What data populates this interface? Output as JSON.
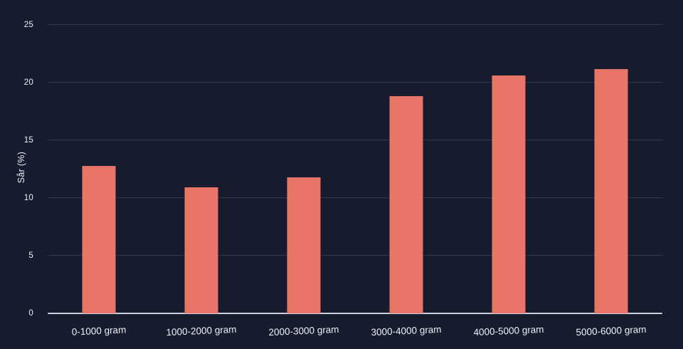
{
  "chart_data": {
    "type": "bar",
    "categories": [
      "0-1000 gram",
      "1000-2000 gram",
      "2000-3000 gram",
      "3000-4000 gram",
      "4000-5000 gram",
      "5000-6000 gram"
    ],
    "values": [
      12.8,
      10.9,
      11.8,
      18.8,
      20.6,
      21.2
    ],
    "xlabel": "",
    "ylabel": "Sår (%)",
    "ylim": [
      0,
      25
    ],
    "yticks": [
      0,
      5,
      10,
      15,
      20,
      25
    ],
    "grid": true,
    "legend": false
  },
  "colors": {
    "background": "#161b2d",
    "bar": "#e87568",
    "gridline": "#313749",
    "axis_line": "#ccd1dc",
    "text": "#eef0f6"
  }
}
